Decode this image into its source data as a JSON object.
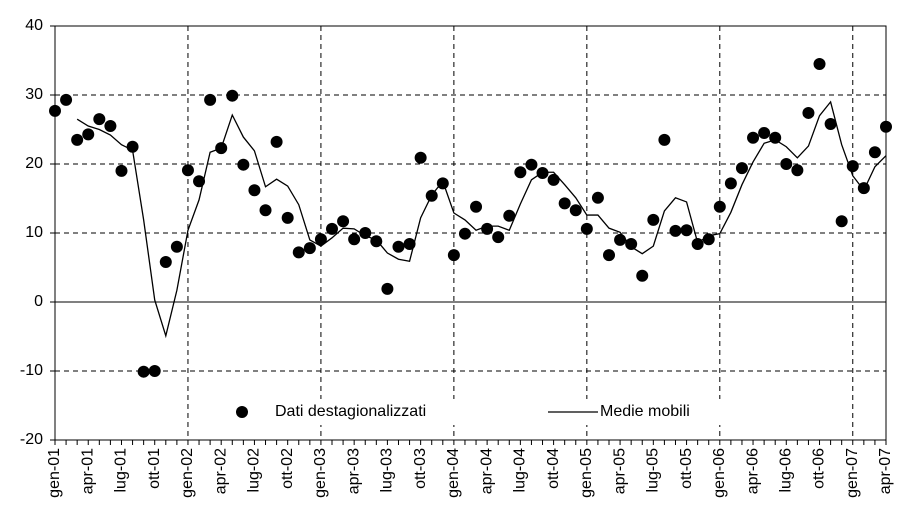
{
  "chart_data": {
    "type": "line",
    "categories": [
      "gen-01",
      null,
      null,
      "apr-01",
      null,
      null,
      "lug-01",
      null,
      null,
      "ott-01",
      null,
      null,
      "gen-02",
      null,
      null,
      "apr-02",
      null,
      null,
      "lug-02",
      null,
      null,
      "ott-02",
      null,
      null,
      "gen-03",
      null,
      null,
      "apr-03",
      null,
      null,
      "lug-03",
      null,
      null,
      "ott-03",
      null,
      null,
      "gen-04",
      null,
      null,
      "apr-04",
      null,
      null,
      "lug-04",
      null,
      null,
      "ott-04",
      null,
      null,
      "gen-05",
      null,
      null,
      "apr-05",
      null,
      null,
      "lug-05",
      null,
      null,
      "ott-05",
      null,
      null,
      "gen-06",
      null,
      null,
      "apr-06",
      null,
      null,
      "lug-06",
      null,
      null,
      "ott-06",
      null,
      null,
      "gen-07",
      null,
      null,
      "apr-07"
    ],
    "series": [
      {
        "name": "Dati destagionalizzati",
        "type": "scatter",
        "color": "#000000",
        "values": [
          27.7,
          29.3,
          23.5,
          24.3,
          26.5,
          25.5,
          19,
          22.5,
          -10.1,
          -10,
          5.8,
          8,
          19.1,
          17.5,
          29.3,
          22.3,
          29.9,
          19.9,
          16.2,
          13.3,
          23.2,
          12.2,
          7.2,
          7.8,
          9.1,
          10.6,
          11.7,
          9.1,
          10,
          8.8,
          1.9,
          8,
          8.4,
          20.9,
          15.4,
          17.2,
          6.8,
          9.9,
          13.8,
          10.6,
          9.4,
          12.5,
          18.8,
          19.9,
          18.7,
          17.7,
          14.3,
          13.3,
          10.6,
          15.1,
          6.8,
          9,
          8.4,
          3.8,
          11.9,
          23.5,
          10.3,
          10.4,
          8.4,
          9.1,
          13.8,
          17.2,
          19.4,
          23.8,
          24.5,
          23.8,
          20,
          19.1,
          27.4,
          34.5,
          25.8,
          11.7,
          19.7,
          16.5,
          21.7,
          25.4
        ]
      },
      {
        "name": "Medie mobili",
        "type": "line",
        "color": "#000000",
        "values": [
          null,
          null,
          26.5,
          25.5,
          25,
          24.2,
          22.8,
          22,
          11.9,
          0.3,
          -4.9,
          1.7,
          10.4,
          14.8,
          21.7,
          22.3,
          27.1,
          23.9,
          21.9,
          16.7,
          17.8,
          16.8,
          14.1,
          9,
          8.1,
          9.3,
          10.7,
          10.6,
          9.6,
          9,
          7.1,
          6.2,
          5.9,
          12.2,
          15.5,
          17.5,
          12.9,
          11.9,
          10.4,
          11,
          11,
          10.4,
          14.2,
          17.7,
          18.8,
          18.8,
          17,
          15.1,
          12.6,
          12.6,
          10.7,
          10.1,
          8,
          7,
          8.1,
          13.2,
          15.1,
          14.5,
          8.6,
          9.6,
          9.9,
          13,
          17,
          20.3,
          23,
          23.5,
          22.5,
          20.9,
          22.6,
          27,
          29,
          22.8,
          18.3,
          16.2,
          19.6,
          21.2
        ]
      }
    ],
    "ylim": [
      -20,
      40
    ],
    "yticks": [
      -20,
      -10,
      0,
      10,
      20,
      30,
      40
    ],
    "grid": true,
    "legend": "bottom"
  }
}
